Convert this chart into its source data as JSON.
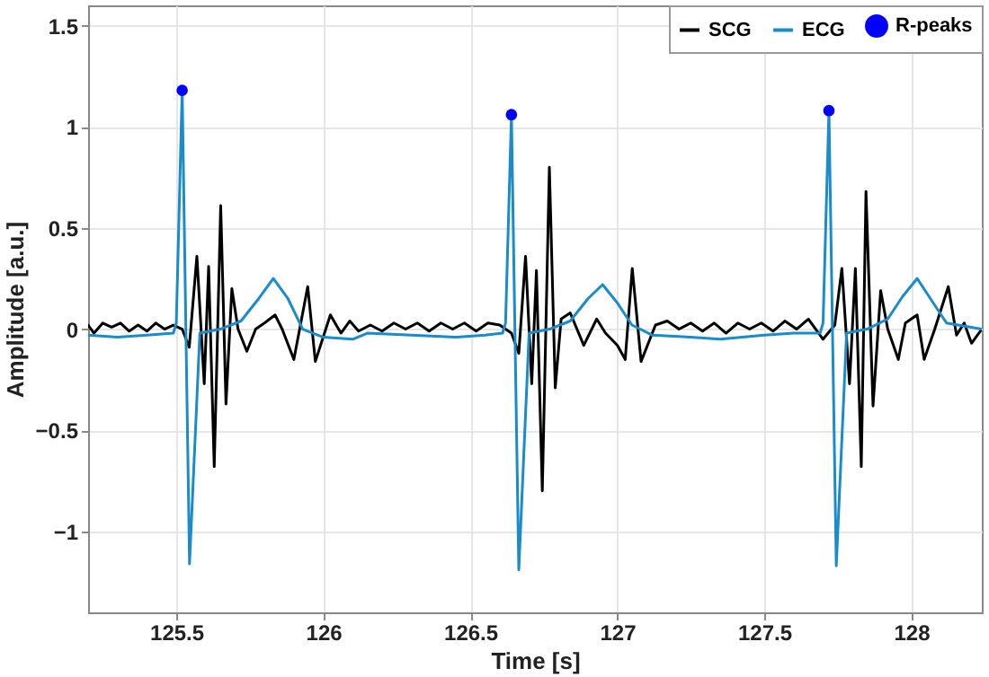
{
  "chart_data": {
    "type": "line",
    "xlabel": "Time [s]",
    "ylabel": "Amplitude [a.u.]",
    "xlim": [
      125.2,
      128.24
    ],
    "ylim": [
      -1.4,
      1.6
    ],
    "xticks": [
      125.5,
      126,
      126.5,
      127,
      127.5,
      128
    ],
    "yticks": [
      -1,
      -0.5,
      0,
      0.5,
      1,
      1.5
    ],
    "grid": true,
    "legend": "top right",
    "line_style": "solid",
    "series": [
      {
        "name": "SCG",
        "color": "#000000",
        "x": [
          125.2,
          125.22,
          125.25,
          125.28,
          125.31,
          125.34,
          125.37,
          125.4,
          125.43,
          125.46,
          125.49,
          125.52,
          125.544,
          125.57,
          125.595,
          125.61,
          125.629,
          125.651,
          125.669,
          125.689,
          125.71,
          125.74,
          125.77,
          125.8,
          125.836,
          125.86,
          125.9,
          125.947,
          125.973,
          126.024,
          126.06,
          126.09,
          126.12,
          126.16,
          126.2,
          126.24,
          126.28,
          126.32,
          126.36,
          126.4,
          126.44,
          126.48,
          126.52,
          126.56,
          126.6,
          126.64,
          126.665,
          126.688,
          126.709,
          126.725,
          126.745,
          126.769,
          126.789,
          126.809,
          126.84,
          126.886,
          126.93,
          126.96,
          127,
          127.027,
          127.051,
          127.081,
          127.13,
          127.17,
          127.21,
          127.25,
          127.29,
          127.33,
          127.37,
          127.41,
          127.45,
          127.49,
          127.53,
          127.57,
          127.61,
          127.65,
          127.7,
          127.74,
          127.764,
          127.79,
          127.81,
          127.83,
          127.846,
          127.87,
          127.896,
          127.92,
          127.956,
          127.98,
          128.02,
          128.044,
          128.08,
          128.126,
          128.154,
          128.18,
          128.205,
          128.24
        ],
        "values": [
          0.02,
          -0.02,
          0.03,
          0.01,
          0.03,
          -0.01,
          0.02,
          -0.01,
          0.03,
          0,
          0.02,
          0,
          -0.09,
          0.36,
          -0.27,
          0.31,
          -0.68,
          0.61,
          -0.37,
          0.2,
          0,
          -0.11,
          0,
          0.03,
          0.07,
          0,
          -0.15,
          0.21,
          -0.16,
          0.07,
          -0.02,
          0.04,
          -0.01,
          0.02,
          -0.01,
          0.03,
          0,
          0.03,
          -0.01,
          0.03,
          0,
          0.03,
          -0.01,
          0.03,
          0.02,
          -0.02,
          -0.12,
          0.36,
          -0.27,
          0.29,
          -0.8,
          0.8,
          -0.29,
          0.05,
          0.08,
          -0.08,
          0.05,
          -0.02,
          -0.08,
          -0.15,
          0.3,
          -0.16,
          0.02,
          0.04,
          0,
          0.03,
          -0.01,
          0.03,
          -0.02,
          0.03,
          0,
          0.03,
          -0.01,
          0.04,
          0,
          0.05,
          -0.05,
          0.02,
          0.3,
          -0.27,
          0.3,
          -0.68,
          0.68,
          -0.38,
          0.19,
          0,
          -0.15,
          0.03,
          0.07,
          -0.15,
          0,
          0.21,
          -0.03,
          0.03,
          -0.07,
          0
        ]
      },
      {
        "name": "ECG",
        "color": "#1a8ccc",
        "x": [
          125.2,
          125.3,
          125.4,
          125.49,
          125.5,
          125.52,
          125.545,
          125.58,
          125.65,
          125.72,
          125.78,
          125.83,
          125.88,
          125.93,
          126,
          126.1,
          126.15,
          126.3,
          126.45,
          126.55,
          126.61,
          126.62,
          126.64,
          126.665,
          126.7,
          126.77,
          126.84,
          126.9,
          126.95,
          127,
          127.05,
          127.12,
          127.25,
          127.35,
          127.5,
          127.6,
          127.69,
          127.7,
          127.72,
          127.745,
          127.78,
          127.85,
          127.92,
          127.97,
          128.02,
          128.07,
          128.12,
          128.24
        ],
        "values": [
          -0.03,
          -0.04,
          -0.03,
          -0.02,
          0.03,
          1.18,
          -1.16,
          -0.02,
          0,
          0.04,
          0.15,
          0.25,
          0.15,
          0,
          -0.04,
          -0.05,
          -0.02,
          -0.03,
          -0.04,
          -0.03,
          -0.02,
          0.03,
          1.06,
          -1.19,
          -0.02,
          0,
          0.04,
          0.15,
          0.22,
          0.13,
          0.02,
          -0.03,
          -0.04,
          -0.05,
          -0.03,
          -0.02,
          -0.02,
          0.03,
          1.08,
          -1.17,
          -0.02,
          0,
          0.05,
          0.16,
          0.25,
          0.14,
          0.03,
          0
        ]
      },
      {
        "name": "R-peaks",
        "type": "scatter",
        "marker": "circle",
        "color": "#0000ff",
        "x": [
          125.52,
          126.64,
          127.72
        ],
        "values": [
          1.18,
          1.06,
          1.08
        ]
      }
    ]
  }
}
